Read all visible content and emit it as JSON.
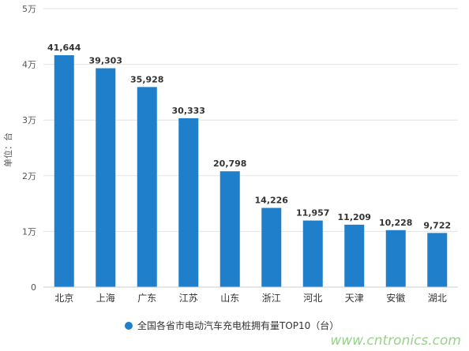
{
  "chart_data": {
    "type": "bar",
    "categories": [
      "北京",
      "上海",
      "广东",
      "江苏",
      "山东",
      "浙江",
      "河北",
      "天津",
      "安徽",
      "湖北"
    ],
    "series": [
      {
        "name": "全国各省市电动汽车充电桩拥有量TOP10（台）",
        "values": [
          41644,
          39303,
          35928,
          30333,
          20798,
          14226,
          11957,
          11209,
          10228,
          9722
        ],
        "color": "#1f7fcb"
      }
    ],
    "data_labels": [
      "41,644",
      "39,303",
      "35,928",
      "30,333",
      "20,798",
      "14,226",
      "11,957",
      "11,209",
      "10,228",
      "9,722"
    ],
    "y_ticks": [
      {
        "value": 0,
        "label": "0"
      },
      {
        "value": 10000,
        "label": "1万"
      },
      {
        "value": 20000,
        "label": "2万"
      },
      {
        "value": 30000,
        "label": "3万"
      },
      {
        "value": 40000,
        "label": "4万"
      },
      {
        "value": 50000,
        "label": "5万"
      }
    ],
    "ylim": [
      0,
      50000
    ],
    "ylabel": "单位：台",
    "xlabel": "",
    "title": "",
    "grid": true,
    "legend_position": "bottom-center"
  },
  "watermark": "www.cntronics.com"
}
